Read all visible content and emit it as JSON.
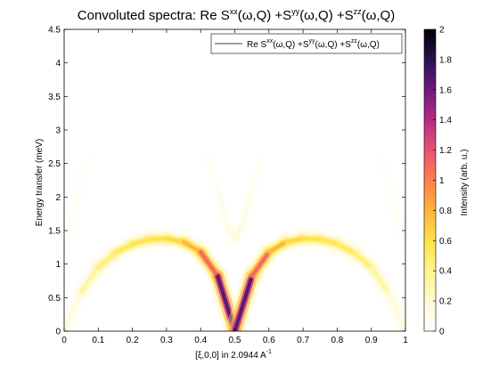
{
  "chart_data": {
    "type": "heatmap",
    "title": {
      "base": "Convoluted spectra: Re S",
      "sup1": "xx",
      "mid1": "(ω,Q) +S",
      "sup2": "yy",
      "mid2": "(ω,Q) +S",
      "sup3": "zz",
      "end": "(ω,Q)"
    },
    "xlabel": {
      "base": "[ξ,0,0] in 2.0944 A",
      "sup": "-1"
    },
    "ylabel": "Energy transfer (meV)",
    "colorbar_label": "Intensity (arb. u.)",
    "legend": {
      "position": "top-right",
      "base": "Re S",
      "sup1": "xx",
      "mid1": "(ω,Q) +S",
      "sup2": "yy",
      "mid2": "(ω,Q) +S",
      "sup3": "zz",
      "end": "(ω,Q)"
    },
    "xlim": [
      0,
      1
    ],
    "ylim": [
      0,
      4.5
    ],
    "clim": [
      0,
      2
    ],
    "x_ticks": [
      "0",
      "0.1",
      "0.2",
      "0.3",
      "0.4",
      "0.5",
      "0.6",
      "0.7",
      "0.8",
      "0.9",
      "1"
    ],
    "y_ticks": [
      "0",
      "0.5",
      "1",
      "1.5",
      "2",
      "2.5",
      "3",
      "3.5",
      "4",
      "4.5"
    ],
    "colorbar_ticks": [
      "0",
      "0.2",
      "0.4",
      "0.6",
      "0.8",
      "1",
      "1.2",
      "1.4",
      "1.6",
      "1.8",
      "2"
    ],
    "colormap": [
      "#ffffff",
      "#fff9d2",
      "#fff48a",
      "#ffe14a",
      "#ffb43c",
      "#ff7f4d",
      "#e85270",
      "#b42d85",
      "#6e1a7e",
      "#2b1050",
      "#000000"
    ],
    "dispersion_branches": [
      {
        "name": "",
        "points": [
          [
            0.0,
            0.0
          ],
          [
            0.05,
            0.58
          ],
          [
            0.1,
            0.95
          ],
          [
            0.15,
            1.17
          ],
          [
            0.2,
            1.3
          ],
          [
            0.25,
            1.37
          ],
          [
            0.3,
            1.38
          ],
          [
            0.35,
            1.33
          ],
          [
            0.4,
            1.18
          ],
          [
            0.45,
            0.82
          ],
          [
            0.5,
            0.0
          ]
        ],
        "peak_intensity": [
          0.05,
          0.25,
          0.4,
          0.5,
          0.55,
          0.58,
          0.6,
          0.68,
          0.9,
          1.3,
          2.0
        ]
      },
      {
        "name": "",
        "points": [
          [
            0.5,
            0.0
          ],
          [
            0.55,
            0.82
          ],
          [
            0.6,
            1.18
          ],
          [
            0.65,
            1.33
          ],
          [
            0.7,
            1.38
          ],
          [
            0.75,
            1.37
          ],
          [
            0.8,
            1.3
          ],
          [
            0.85,
            1.17
          ],
          [
            0.9,
            0.95
          ],
          [
            0.95,
            0.58
          ],
          [
            1.0,
            0.0
          ]
        ],
        "peak_intensity": [
          2.0,
          1.3,
          0.9,
          0.68,
          0.6,
          0.58,
          0.55,
          0.5,
          0.4,
          0.25,
          0.05
        ]
      },
      {
        "name": "",
        "points": [
          [
            0.02,
            1.45
          ],
          [
            0.04,
            2.05
          ],
          [
            0.06,
            2.5
          ],
          [
            0.08,
            2.58
          ]
        ],
        "peak_intensity": [
          0.05,
          0.04,
          0.03,
          0.02
        ]
      },
      {
        "name": "",
        "points": [
          [
            0.92,
            2.58
          ],
          [
            0.94,
            2.5
          ],
          [
            0.96,
            2.05
          ],
          [
            0.98,
            1.45
          ]
        ],
        "peak_intensity": [
          0.02,
          0.03,
          0.04,
          0.05
        ]
      },
      {
        "name": "",
        "points": [
          [
            0.42,
            2.58
          ],
          [
            0.45,
            2.1
          ],
          [
            0.48,
            1.55
          ],
          [
            0.5,
            1.38
          ],
          [
            0.52,
            1.55
          ],
          [
            0.55,
            2.1
          ],
          [
            0.58,
            2.58
          ]
        ],
        "peak_intensity": [
          0.03,
          0.06,
          0.14,
          0.22,
          0.14,
          0.06,
          0.03
        ]
      }
    ]
  }
}
